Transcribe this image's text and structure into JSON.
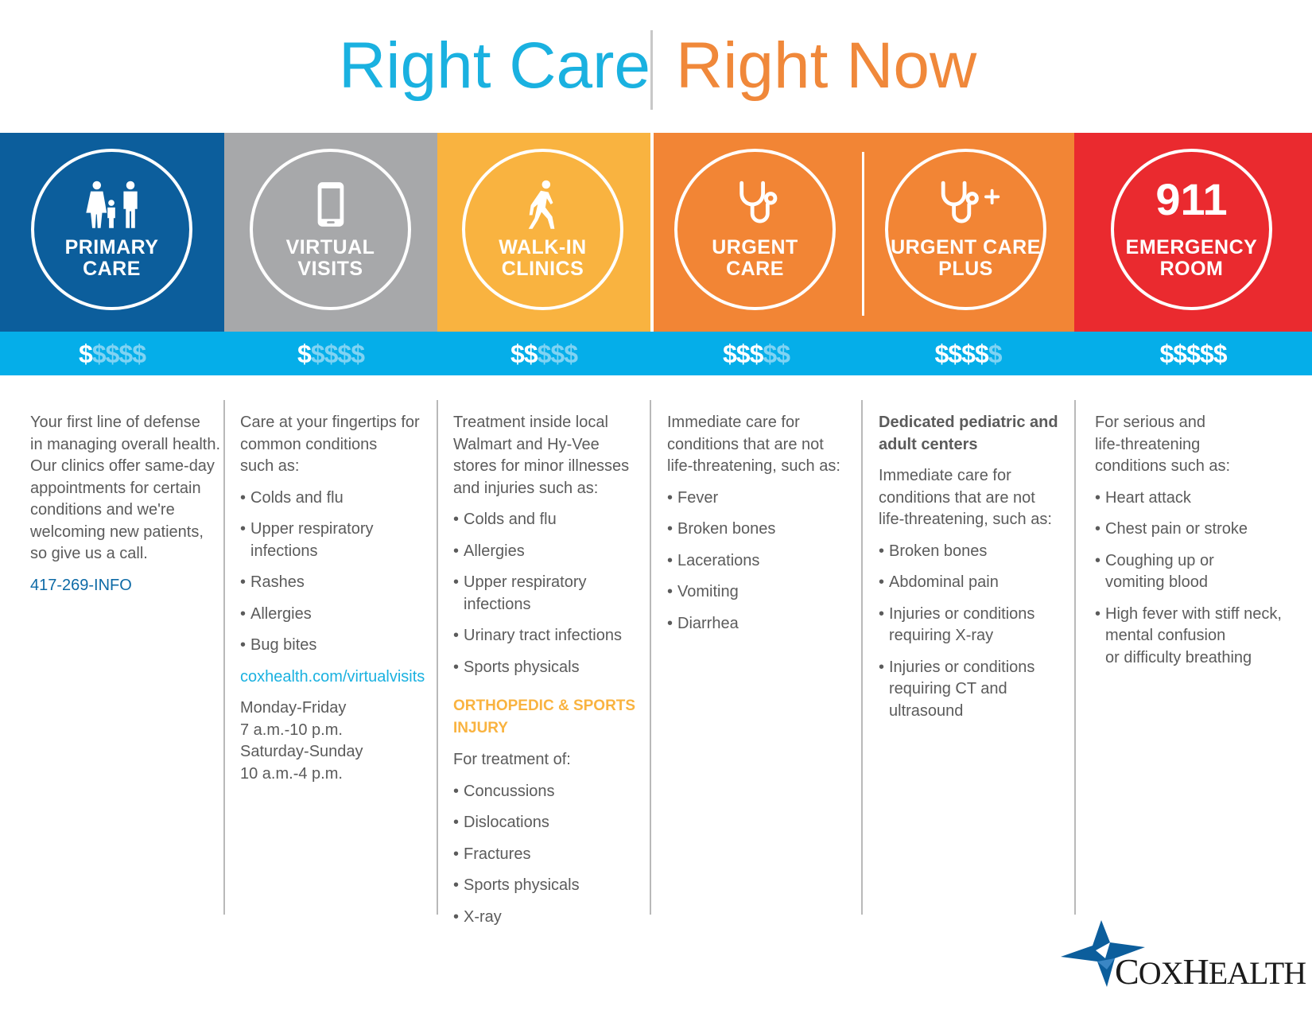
{
  "title": {
    "left": "Right Care",
    "right": "Right Now"
  },
  "services": [
    {
      "label_line1": "PRIMARY",
      "label_line2": "CARE",
      "icon": "family-icon",
      "cost_on": "$",
      "cost_off": "$$$$"
    },
    {
      "label_line1": "VIRTUAL",
      "label_line2": "VISITS",
      "icon": "smartphone-icon",
      "cost_on": "$",
      "cost_off": "$$$$"
    },
    {
      "label_line1": "WALK-IN",
      "label_line2": "CLINICS",
      "icon": "walking-person-icon",
      "cost_on": "$$",
      "cost_off": "$$$"
    },
    {
      "label_line1": "URGENT",
      "label_line2": "CARE",
      "icon": "stethoscope-icon",
      "cost_on": "$$$",
      "cost_off": "$$"
    },
    {
      "label_line1": "URGENT CARE",
      "label_line2": "PLUS",
      "icon": "stethoscope-plus-icon",
      "cost_on": "$$$$",
      "cost_off": "$"
    },
    {
      "number": "911",
      "label_line1": "EMERGENCY",
      "label_line2": "ROOM",
      "cost_on": "$$$$$",
      "cost_off": ""
    }
  ],
  "columns": {
    "primary": {
      "intro": [
        "Your first line of defense",
        "in managing overall health.",
        "Our clinics offer same-day",
        "appointments for certain",
        "conditions and we're",
        "welcoming new patients,",
        "so give us a call."
      ],
      "phone": "417-269-INFO"
    },
    "virtual": {
      "intro": [
        "Care at your fingertips for",
        "common conditions",
        "such as:"
      ],
      "items": [
        "Colds and flu",
        "Upper respiratory",
        "infections",
        "Rashes",
        "Allergies",
        "Bug bites"
      ],
      "link": "coxhealth.com/virtualvisits",
      "hours": [
        "Monday-Friday",
        "7 a.m.-10 p.m.",
        "Saturday-Sunday",
        "10 a.m.-4 p.m."
      ]
    },
    "walkin": {
      "intro": [
        "Treatment inside local",
        "Walmart and Hy-Vee",
        "stores for minor illnesses",
        "and injuries such as:"
      ],
      "items": [
        "Colds and flu",
        "Allergies",
        "Upper respiratory",
        "infections",
        "Urinary tract infections",
        "Sports physicals"
      ],
      "ortho_heading": [
        "ORTHOPEDIC & SPORTS",
        "INJURY"
      ],
      "ortho_intro": "For treatment of:",
      "ortho_items": [
        "Concussions",
        "Dislocations",
        "Fractures",
        "Sports physicals",
        "X-ray"
      ]
    },
    "urgent": {
      "intro": [
        "Immediate care for",
        "conditions that are not",
        "life-threatening, such as:"
      ],
      "items": [
        "Fever",
        "Broken bones",
        "Lacerations",
        "Vomiting",
        "Diarrhea"
      ]
    },
    "urgent_plus": {
      "heading": [
        "Dedicated pediatric and",
        "adult centers"
      ],
      "intro": [
        "Immediate care for",
        "conditions that are not",
        "life-threatening, such as:"
      ],
      "items": [
        "Broken bones",
        "Abdominal pain",
        "Injuries or conditions",
        "requiring X-ray",
        "Injuries or conditions",
        "requiring CT and",
        "ultrasound"
      ]
    },
    "er": {
      "intro": [
        "For serious and",
        "life-threatening",
        "conditions such as:"
      ],
      "items": [
        "Heart attack",
        "Chest pain or stroke",
        "Coughing up or",
        "vomiting blood",
        "High fever with stiff neck,",
        "mental confusion",
        "or difficulty breathing"
      ]
    }
  },
  "logo": {
    "text_c": "C",
    "text_ox": "OX",
    "text_h": "H",
    "text_ealth": "EALTH",
    "icon": "coxhealth-star-icon"
  },
  "colors": {
    "cyan": "#1ab1e0",
    "orange": "#f0883a",
    "navy": "#0c5e9c",
    "gray": "#a7a8aa",
    "yellow": "#f9b340",
    "urgent_orange": "#f28535",
    "red": "#ea2a2f",
    "cost_strip": "#05aee9"
  }
}
